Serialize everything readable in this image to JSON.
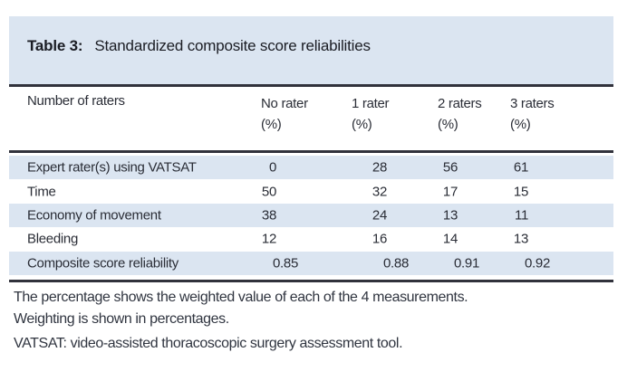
{
  "table": {
    "label": "Table 3:",
    "title": "Standardized composite score reliabilities",
    "header": {
      "row_header": "Number of raters",
      "cols": [
        {
          "line1": "No rater",
          "line2": "(%)"
        },
        {
          "line1": "1 rater",
          "line2": "(%)"
        },
        {
          "line1": "2 raters",
          "line2": "(%)"
        },
        {
          "line1": "3 raters",
          "line2": "(%)"
        }
      ]
    },
    "rows": [
      {
        "label": "Expert rater(s) using VATSAT",
        "values": [
          "0",
          "28",
          "56",
          "61"
        ]
      },
      {
        "label": "Time",
        "values": [
          "50",
          "32",
          "17",
          "15"
        ]
      },
      {
        "label": "Economy of movement",
        "values": [
          "38",
          "24",
          "13",
          "11"
        ]
      },
      {
        "label": "Bleeding",
        "values": [
          "12",
          "16",
          "14",
          "13"
        ]
      },
      {
        "label": "Composite score reliability",
        "values": [
          "0.85",
          "0.88",
          "0.91",
          "0.92"
        ]
      }
    ]
  },
  "footnotes": {
    "line1": "The percentage shows the weighted value of each of the 4 measurements.",
    "line2": "Weighting is shown in percentages.",
    "line3": "VATSAT: video-assisted thoracoscopic surgery assessment tool."
  },
  "colors": {
    "highlight_blue": "#dbe5f1",
    "rule_dark": "#31323c",
    "text_dark": "#2a2d36"
  },
  "chart_data": {
    "type": "table",
    "title": "Table 3: Standardized composite score reliabilities",
    "columns": [
      "Number of raters",
      "No rater (%)",
      "1 rater (%)",
      "2 raters (%)",
      "3 raters (%)"
    ],
    "rows": [
      [
        "Expert rater(s) using VATSAT",
        0,
        28,
        56,
        61
      ],
      [
        "Time",
        50,
        32,
        17,
        15
      ],
      [
        "Economy of movement",
        38,
        24,
        13,
        11
      ],
      [
        "Bleeding",
        12,
        16,
        14,
        13
      ],
      [
        "Composite score reliability",
        0.85,
        0.88,
        0.91,
        0.92
      ]
    ]
  }
}
